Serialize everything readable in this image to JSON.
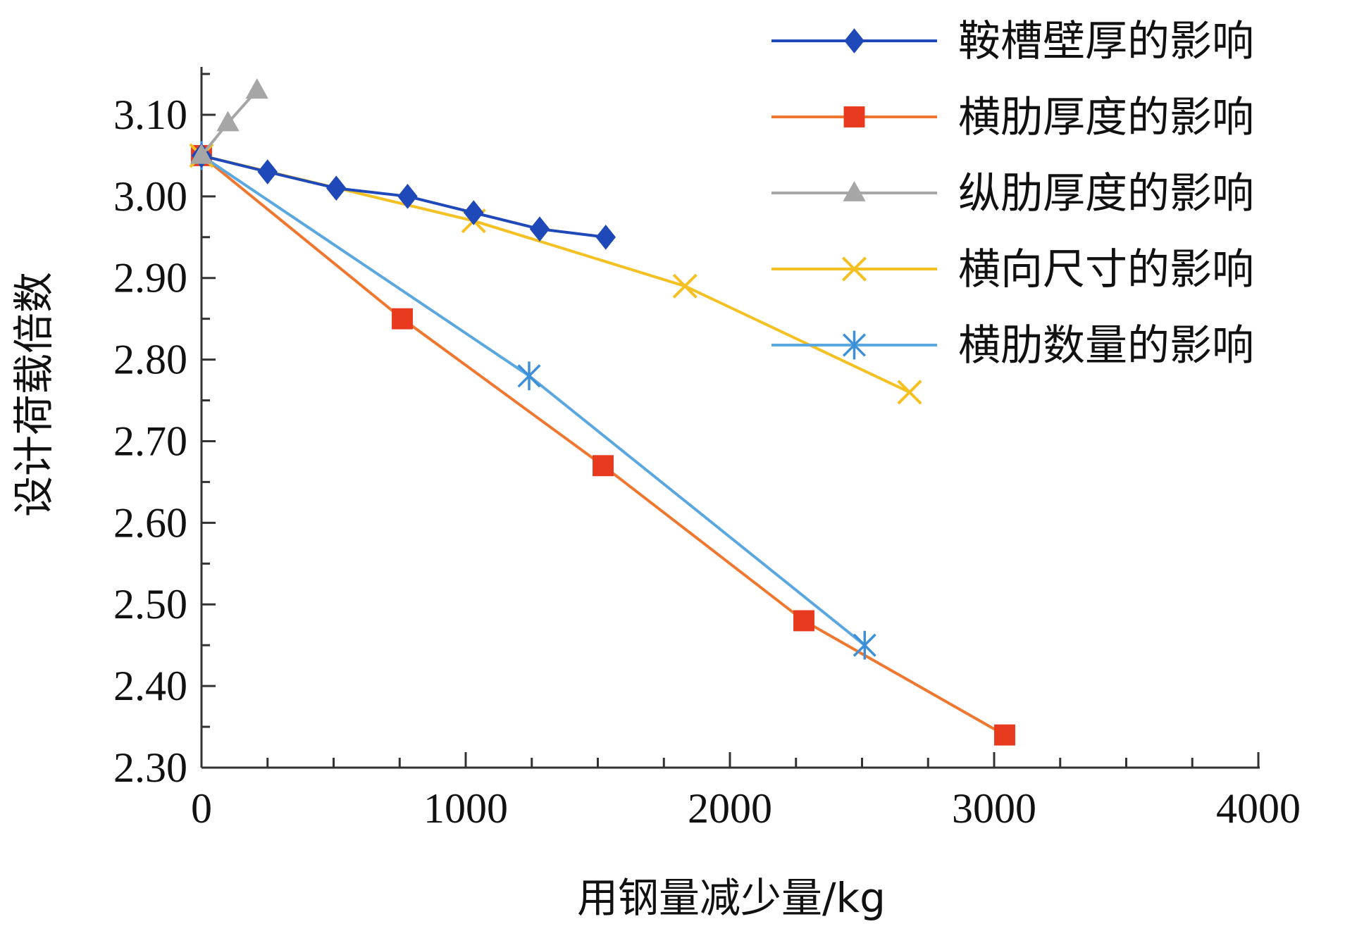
{
  "chart_data": {
    "type": "line",
    "xlabel": "用钢量减少量/kg",
    "ylabel": "设计荷载倍数",
    "xlim": [
      0,
      4000
    ],
    "ylim": [
      2.3,
      3.15
    ],
    "x_ticks": [
      "0",
      "1000",
      "2000",
      "3000",
      "4000"
    ],
    "y_ticks": [
      "2.30",
      "2.40",
      "2.50",
      "2.60",
      "2.70",
      "2.80",
      "2.90",
      "3.00",
      "3.10"
    ],
    "grid": false,
    "legend_position": "top-right",
    "series": [
      {
        "name": "鞍槽壁厚的影响",
        "color": "#1f49b8",
        "marker": "diamond",
        "x": [
          0,
          250,
          510,
          780,
          1030,
          1280,
          1530
        ],
        "y": [
          3.05,
          3.03,
          3.01,
          3.0,
          2.98,
          2.96,
          2.95
        ]
      },
      {
        "name": "横肋厚度的影响",
        "color": "#f0772f",
        "marker_color": "#e83a1e",
        "marker": "square",
        "x": [
          0,
          760,
          1520,
          2280,
          3040
        ],
        "y": [
          3.05,
          2.85,
          2.67,
          2.48,
          2.34
        ]
      },
      {
        "name": "纵肋厚度的影响",
        "color": "#a6a6a6",
        "marker": "triangle",
        "x": [
          0,
          100,
          210
        ],
        "y": [
          3.05,
          3.09,
          3.13
        ]
      },
      {
        "name": "横向尺寸的影响",
        "color": "#f5c022",
        "marker": "x",
        "x": [
          0,
          1030,
          1830,
          2680
        ],
        "y": [
          3.05,
          2.97,
          2.89,
          2.76
        ]
      },
      {
        "name": "横肋数量的影响",
        "color": "#5ba7e0",
        "marker_color": "#3d8fd9",
        "marker": "asterisk",
        "x": [
          0,
          1240,
          2510
        ],
        "y": [
          3.05,
          2.78,
          2.45
        ]
      }
    ]
  }
}
